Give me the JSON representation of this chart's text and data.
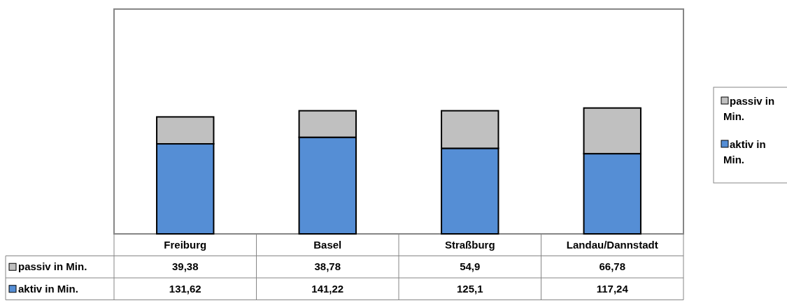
{
  "chart_data": {
    "type": "bar",
    "stacked": true,
    "categories": [
      "Freiburg",
      "Basel",
      "Straßburg",
      "Landau/Dannstadt"
    ],
    "series": [
      {
        "name": "aktiv in Min.",
        "color": "#558ed5",
        "values": [
          131.62,
          141.22,
          125.1,
          117.24
        ],
        "value_labels": [
          "131,62",
          "141,22",
          "125,1",
          "117,24"
        ]
      },
      {
        "name": "passiv in Min.",
        "color": "#c0c0c0",
        "values": [
          39.38,
          38.78,
          54.9,
          66.78
        ],
        "value_labels": [
          "39,38",
          "38,78",
          "54,9",
          "66,78"
        ]
      }
    ],
    "legend": "right"
  }
}
